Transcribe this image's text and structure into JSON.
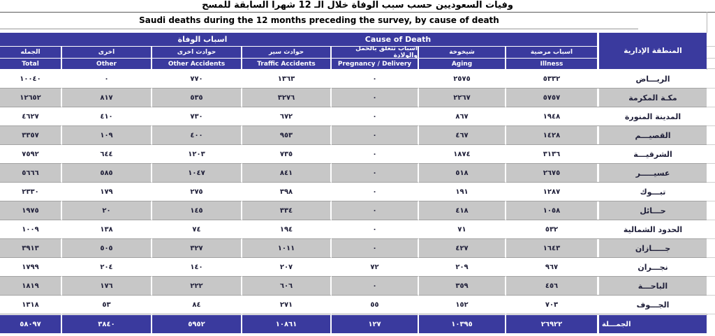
{
  "titles": {
    "arabic": "وفيات  السعوديين حسب سبب الوفاة خلال الـ 12 شهرا السابقة للمسح",
    "english": "Saudi deaths during the 12 months preceding the survey, by cause of death"
  },
  "header": {
    "group_ar": "اسباب الوفاة",
    "group_en": "Cause of Death",
    "region_ar": "المنطقة الإدارية",
    "columns": [
      {
        "ar": "الجمله",
        "en": "Total"
      },
      {
        "ar": "اخرى",
        "en": "Other"
      },
      {
        "ar": "حوادث اخرى",
        "en": "Other Accidents"
      },
      {
        "ar": "حوادث سير",
        "en": "Traffic Accidents"
      },
      {
        "ar": "اسباب تتعلق بالحمل والولادة",
        "en": "Pregnancy / Delivery"
      },
      {
        "ar": "شيخوخة",
        "en": "Aging"
      },
      {
        "ar": "اسباب مرضية",
        "en": "Illness"
      }
    ]
  },
  "table": {
    "rows": [
      {
        "region": "الريـــاض",
        "values": [
          "١٠٠٤٠",
          "٠",
          "٧٧٠",
          "١٣٦٣",
          "٠",
          "٢٥٧٥",
          "٥٣٣٢"
        ]
      },
      {
        "region": "مكـة المكرمة",
        "values": [
          "١٢٦٥٢",
          "٨١٧",
          "٥٣٥",
          "٣٢٧٦",
          "٠",
          "٢٢٦٧",
          "٥٧٥٧"
        ]
      },
      {
        "region": "المدينة المنورة",
        "values": [
          "٤٦٢٧",
          "٤١٠",
          "٧٣٠",
          "٦٧٢",
          "٠",
          "٨٦٧",
          "١٩٤٨"
        ]
      },
      {
        "region": "القصيـــم",
        "values": [
          "٣٣٥٧",
          "١٠٩",
          "٤٠٠",
          "٩٥٣",
          "٠",
          "٤٦٧",
          "١٤٢٨"
        ]
      },
      {
        "region": "الشرقيـــة",
        "values": [
          "٧٥٩٢",
          "٦٤٤",
          "١٢٠٣",
          "٧٣٥",
          "٠",
          "١٨٧٤",
          "٣١٣٦"
        ]
      },
      {
        "region": "عسيـــــر",
        "values": [
          "٥٦٦٦",
          "٥٨٥",
          "١٠٤٧",
          "٨٤١",
          "٠",
          "٥١٨",
          "٢٦٧٥"
        ]
      },
      {
        "region": "تبـــوك",
        "values": [
          "٢٣٣٠",
          "١٧٩",
          "٢٧٥",
          "٣٩٨",
          "٠",
          "١٩١",
          "١٢٨٧"
        ]
      },
      {
        "region": "حـــائل",
        "values": [
          "١٩٧٥",
          "٢٠",
          "١٤٥",
          "٣٣٤",
          "٠",
          "٤١٨",
          "١٠٥٨"
        ]
      },
      {
        "region": "الحدود الشمالية",
        "values": [
          "١٠٠٩",
          "١٣٨",
          "٧٤",
          "١٩٤",
          "٠",
          "٧١",
          "٥٣٢"
        ]
      },
      {
        "region": "جـــــازان",
        "values": [
          "٣٩١٣",
          "٥٠٥",
          "٣٢٧",
          "١٠١١",
          "٠",
          "٤٢٧",
          "١٦٤٣"
        ]
      },
      {
        "region": "نجـــران",
        "values": [
          "١٧٩٩",
          "٢٠٤",
          "١٤٠",
          "٢٠٧",
          "٧٢",
          "٢٠٩",
          "٩٦٧"
        ]
      },
      {
        "region": "الباحـــة",
        "values": [
          "١٨١٩",
          "١٧٦",
          "٢٢٢",
          "٦٠٦",
          "٠",
          "٣٥٩",
          "٤٥٦"
        ]
      },
      {
        "region": "الجـــوف",
        "values": [
          "١٣١٨",
          "٥٣",
          "٨٤",
          "٢٧١",
          "٥٥",
          "١٥٢",
          "٧٠٣"
        ]
      }
    ],
    "total_row": {
      "region": "الجمـــلة",
      "values": [
        "٥٨٠٩٧",
        "٣٨٤٠",
        "٥٩٥٢",
        "١٠٨٦١",
        "١٢٧",
        "١٠٣٩٥",
        "٢٦٩٢٢"
      ]
    }
  },
  "colors": {
    "header_blue": "#3a3a9e",
    "stripe_gray": "#c7c7c7"
  },
  "chart_data": {
    "type": "table",
    "title": "Saudi deaths during the 12 months preceding the survey, by cause of death",
    "columns_rtl_order": [
      "Illness",
      "Aging",
      "Pregnancy / Delivery",
      "Traffic Accidents",
      "Other Accidents",
      "Other",
      "Total"
    ],
    "rows": [
      {
        "region_ar": "الرياض",
        "illness": 5332,
        "aging": 2575,
        "pregnancy_delivery": 0,
        "traffic_accidents": 1363,
        "other_accidents": 770,
        "other": 0,
        "total": 10040
      },
      {
        "region_ar": "مكة المكرمة",
        "illness": 5757,
        "aging": 2267,
        "pregnancy_delivery": 0,
        "traffic_accidents": 3276,
        "other_accidents": 535,
        "other": 817,
        "total": 12652
      },
      {
        "region_ar": "المدينة المنورة",
        "illness": 1948,
        "aging": 867,
        "pregnancy_delivery": 0,
        "traffic_accidents": 672,
        "other_accidents": 730,
        "other": 410,
        "total": 4627
      },
      {
        "region_ar": "القصيم",
        "illness": 1428,
        "aging": 467,
        "pregnancy_delivery": 0,
        "traffic_accidents": 953,
        "other_accidents": 400,
        "other": 109,
        "total": 3357
      },
      {
        "region_ar": "الشرقية",
        "illness": 3136,
        "aging": 1874,
        "pregnancy_delivery": 0,
        "traffic_accidents": 735,
        "other_accidents": 1203,
        "other": 644,
        "total": 7592
      },
      {
        "region_ar": "عسير",
        "illness": 2675,
        "aging": 518,
        "pregnancy_delivery": 0,
        "traffic_accidents": 841,
        "other_accidents": 1047,
        "other": 585,
        "total": 5666
      },
      {
        "region_ar": "تبوك",
        "illness": 1287,
        "aging": 191,
        "pregnancy_delivery": 0,
        "traffic_accidents": 398,
        "other_accidents": 275,
        "other": 179,
        "total": 2330
      },
      {
        "region_ar": "حائل",
        "illness": 1058,
        "aging": 418,
        "pregnancy_delivery": 0,
        "traffic_accidents": 334,
        "other_accidents": 145,
        "other": 20,
        "total": 1975
      },
      {
        "region_ar": "الحدود الشمالية",
        "illness": 532,
        "aging": 71,
        "pregnancy_delivery": 0,
        "traffic_accidents": 194,
        "other_accidents": 74,
        "other": 138,
        "total": 1009
      },
      {
        "region_ar": "جازان",
        "illness": 1643,
        "aging": 427,
        "pregnancy_delivery": 0,
        "traffic_accidents": 1011,
        "other_accidents": 327,
        "other": 505,
        "total": 3913
      },
      {
        "region_ar": "نجران",
        "illness": 967,
        "aging": 209,
        "pregnancy_delivery": 72,
        "traffic_accidents": 207,
        "other_accidents": 140,
        "other": 204,
        "total": 1799
      },
      {
        "region_ar": "الباحة",
        "illness": 456,
        "aging": 359,
        "pregnancy_delivery": 0,
        "traffic_accidents": 606,
        "other_accidents": 222,
        "other": 176,
        "total": 1819
      },
      {
        "region_ar": "الجوف",
        "illness": 703,
        "aging": 152,
        "pregnancy_delivery": 55,
        "traffic_accidents": 271,
        "other_accidents": 84,
        "other": 53,
        "total": 1318
      }
    ],
    "grand_total": {
      "illness": 26922,
      "aging": 10395,
      "pregnancy_delivery": 127,
      "traffic_accidents": 10861,
      "other_accidents": 5952,
      "other": 3840,
      "total": 58097
    }
  }
}
